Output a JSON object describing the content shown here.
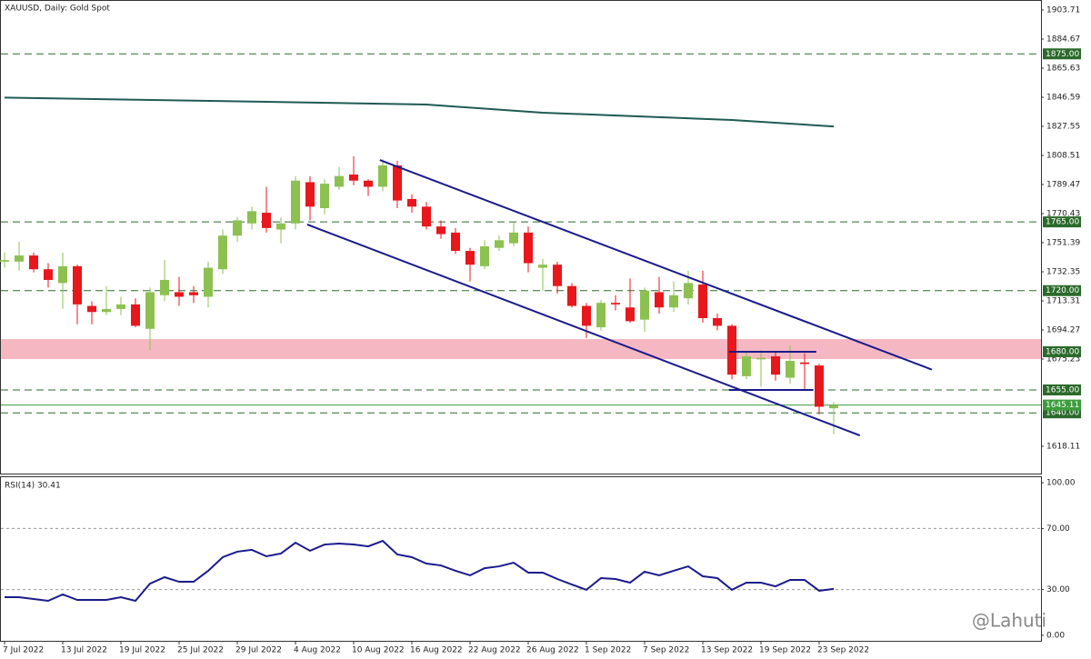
{
  "chart_data": [
    {
      "type": "candlestick",
      "title": "XAUUSD, Daily:  Gold Spot",
      "categories": [
        "7 Jul 2022",
        null,
        null,
        null,
        "13 Jul 2022",
        null,
        null,
        null,
        "19 Jul 2022",
        null,
        null,
        null,
        "25 Jul 2022",
        null,
        null,
        null,
        "29 Jul 2022",
        null,
        null,
        null,
        "4 Aug 2022",
        null,
        null,
        null,
        "10 Aug 2022",
        null,
        null,
        null,
        "16 Aug 2022",
        null,
        null,
        null,
        "22 Aug 2022",
        null,
        null,
        null,
        "26 Aug 2022",
        null,
        null,
        null,
        "1 Sep 2022",
        null,
        null,
        null,
        "7 Sep 2022",
        null,
        null,
        null,
        "13 Sep 2022",
        null,
        null,
        null,
        "19 Sep 2022",
        null,
        null,
        null,
        "23 Sep 2022",
        null
      ],
      "open": [
        1739,
        1739,
        1743,
        1734,
        1725,
        1736,
        1710,
        1706,
        1708,
        1711,
        1695,
        1717,
        1719,
        1719,
        1716,
        1734,
        1756,
        1764,
        1771,
        1760,
        1764,
        1791,
        1774,
        1788,
        1796,
        1792,
        1788,
        1802,
        1780,
        1775,
        1762,
        1758,
        1746,
        1736,
        1748,
        1751,
        1758,
        1735,
        1737,
        1723,
        1710,
        1696,
        1712,
        1709,
        1701,
        1719,
        1709,
        1715,
        1724,
        1702,
        1697,
        1664,
        1675,
        1677,
        1663,
        1673,
        1671,
        1643
      ],
      "high": [
        1745,
        1752,
        1745,
        1738,
        1745,
        1737,
        1713,
        1723,
        1716,
        1715,
        1722,
        1740,
        1729,
        1723,
        1739,
        1760,
        1768,
        1775,
        1788,
        1768,
        1795,
        1795,
        1793,
        1801,
        1808,
        1793,
        1806,
        1805,
        1783,
        1778,
        1766,
        1761,
        1748,
        1753,
        1756,
        1765,
        1762,
        1741,
        1739,
        1725,
        1712,
        1714,
        1717,
        1728,
        1722,
        1729,
        1726,
        1733,
        1733,
        1705,
        1698,
        1680,
        1681,
        1680,
        1684,
        1679,
        1672,
        1647
      ],
      "low": [
        1735,
        1733,
        1732,
        1722,
        1708,
        1698,
        1698,
        1704,
        1704,
        1696,
        1681,
        1713,
        1710,
        1712,
        1709,
        1731,
        1752,
        1760,
        1758,
        1751,
        1760,
        1766,
        1770,
        1786,
        1789,
        1782,
        1785,
        1774,
        1771,
        1760,
        1754,
        1744,
        1726,
        1734,
        1746,
        1749,
        1732,
        1720,
        1718,
        1709,
        1689,
        1694,
        1707,
        1699,
        1693,
        1705,
        1706,
        1711,
        1699,
        1694,
        1662,
        1662,
        1657,
        1661,
        1659,
        1655,
        1639,
        1626
      ],
      "close": [
        1740,
        1743,
        1734,
        1727,
        1736,
        1711,
        1706,
        1708,
        1711,
        1697,
        1719,
        1727,
        1716,
        1717,
        1735,
        1756,
        1766,
        1772,
        1761,
        1764,
        1792,
        1775,
        1790,
        1795,
        1792,
        1788,
        1802,
        1779,
        1775,
        1762,
        1757,
        1746,
        1737,
        1749,
        1753,
        1758,
        1738,
        1737,
        1723,
        1710,
        1697,
        1712,
        1711,
        1700,
        1720,
        1709,
        1717,
        1725,
        1702,
        1697,
        1665,
        1677,
        1676,
        1665,
        1674,
        1672,
        1644,
        1645
      ],
      "up_color": "#8cc152",
      "down_color": "#e8171c",
      "ylim": [
        1600.25,
        1910.26
      ],
      "yticks": [
        1903.71,
        1884.67,
        1865.63,
        1846.59,
        1827.55,
        1808.51,
        1789.47,
        1770.43,
        1751.39,
        1732.35,
        1713.31,
        1694.27,
        1675.23,
        1618.11
      ],
      "zone": {
        "from": 1675.2,
        "to": 1688.3,
        "color": "#f5b8c2"
      },
      "levels": [
        {
          "value": 1875,
          "label": "1875.00"
        },
        {
          "value": 1765,
          "label": "1765.00"
        },
        {
          "value": 1720,
          "label": "1720.00"
        },
        {
          "value": 1680,
          "label": "1680.00"
        },
        {
          "value": 1655,
          "label": "1655.00"
        },
        {
          "value": 1640,
          "label": "1640.00"
        }
      ],
      "level_color": "#2b6a2b",
      "price_line": {
        "value": 1645.11,
        "label": "1645.11",
        "color": "#3d9c3d"
      },
      "lines": [
        {
          "color": "#1f5a55",
          "x": [
            0,
            18,
            29,
            37,
            50,
            57
          ],
          "values": [
            1846.4,
            1843.6,
            1841.8,
            1836.5,
            1831.7,
            1827.5
          ]
        },
        {
          "color": "#1a1a8c",
          "x": [
            25.8,
            63.75
          ],
          "values": [
            1805.5,
            1668.3
          ]
        },
        {
          "color": "#1a1a8c",
          "x": [
            20.8,
            58.8
          ],
          "values": [
            1763.3,
            1625.2
          ]
        },
        {
          "color": "#1a1a8c",
          "x": [
            49.8,
            55.8
          ],
          "values": [
            1680,
            1680
          ]
        },
        {
          "color": "#1a1a8c",
          "x": [
            49.8,
            55.6
          ],
          "values": [
            1655,
            1655
          ]
        }
      ]
    },
    {
      "type": "line",
      "title": "RSI(14) 30.41",
      "color": "#1a1a8c",
      "values": [
        25,
        25,
        23.8,
        22.6,
        26.8,
        23.2,
        23.2,
        23.2,
        25,
        22.6,
        33.9,
        38.1,
        35.1,
        35.1,
        42.3,
        51.2,
        54.8,
        56,
        51.8,
        53.6,
        60.7,
        55.4,
        59.5,
        60.1,
        59.5,
        58.3,
        61.9,
        53,
        51.2,
        47,
        45.8,
        42.3,
        39.3,
        44,
        45.2,
        47.6,
        41.1,
        41.1,
        36.9,
        33.3,
        29.8,
        37.5,
        36.9,
        34.5,
        41.7,
        39.3,
        42.3,
        45.2,
        38.7,
        37.5,
        29.8,
        34.5,
        34.5,
        32.1,
        36.3,
        36.3,
        29.2,
        30.41
      ],
      "ylim": [
        -3.6,
        104.2
      ],
      "yticks": [
        {
          "value": 100,
          "label": "100.00"
        },
        {
          "value": 70,
          "label": "70.00"
        },
        {
          "value": 30,
          "label": "30.00"
        },
        {
          "value": 0,
          "label": "0.00"
        }
      ],
      "levels": [
        70,
        30
      ]
    }
  ],
  "watermark": "@Lahuti"
}
